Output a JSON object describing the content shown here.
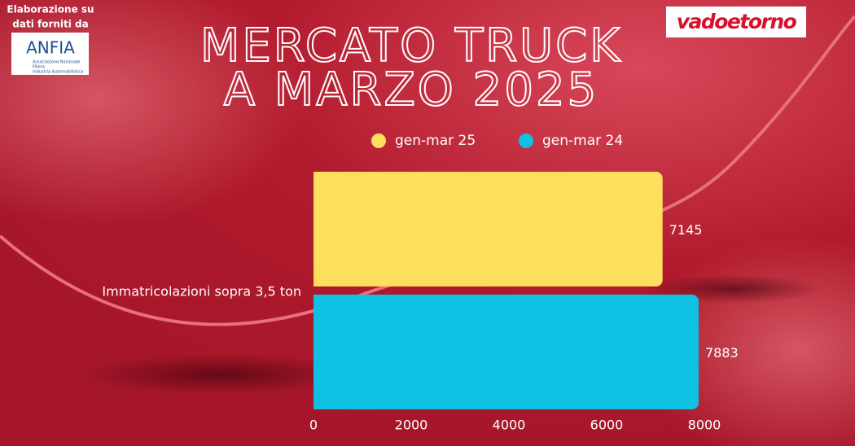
{
  "chart_data": {
    "type": "bar",
    "orientation": "horizontal",
    "title": [
      "MERCATO TRUCK",
      "A MARZO 2025"
    ],
    "source_note": [
      "Elaborazione su",
      "dati forniti da"
    ],
    "source_logo": {
      "name": "ANFIA",
      "subtitle": [
        "Associazione Nazionale",
        "Filiera",
        "Industria Automobilistica"
      ]
    },
    "brand": "vadoetorno",
    "categories": [
      "Immatricolazioni sopra 3,5 ton"
    ],
    "series": [
      {
        "name": "gen-mar 25",
        "color": "#fddf5e",
        "values": [
          7145
        ]
      },
      {
        "name": "gen-mar 24",
        "color": "#0ec1e2",
        "values": [
          7883
        ]
      }
    ],
    "xlim": [
      0,
      8000
    ],
    "xticks": [
      0,
      2000,
      4000,
      6000,
      8000
    ],
    "grid": false,
    "legend": "top"
  }
}
